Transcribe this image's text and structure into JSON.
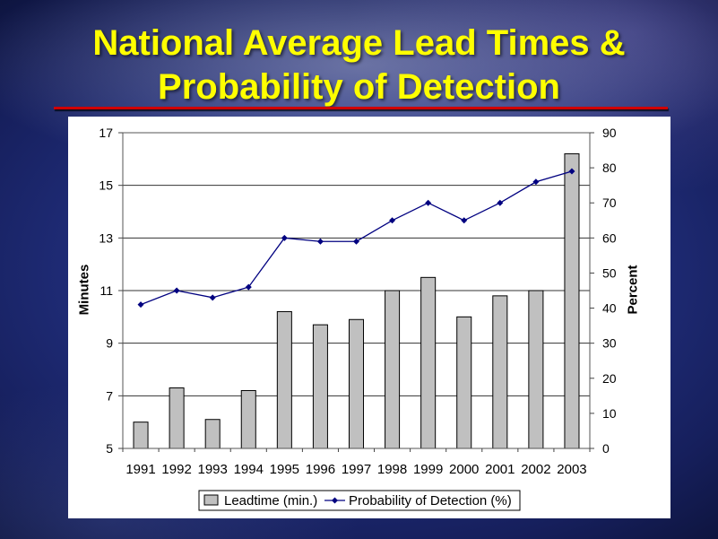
{
  "slide": {
    "background_color": "#1d2770",
    "title_color": "#ffff00",
    "rule_color": "#d00000",
    "panel_color": "#ffffff"
  },
  "chart_data": {
    "type": "bar",
    "title": "National Average Lead Times & Probability of Detection",
    "categories": [
      "1991",
      "1992",
      "1993",
      "1994",
      "1995",
      "1996",
      "1997",
      "1998",
      "1999",
      "2000",
      "2001",
      "2002",
      "2003"
    ],
    "series": [
      {
        "name": "Leadtime (min.)",
        "type": "bar",
        "axis": "left",
        "color": "#c0c0c0",
        "values": [
          6.0,
          7.3,
          6.1,
          7.2,
          10.2,
          9.7,
          9.9,
          11.0,
          11.5,
          10.0,
          10.8,
          11.0,
          16.2
        ]
      },
      {
        "name": "Probability of Detection (%)",
        "type": "line",
        "axis": "right",
        "color": "#000080",
        "marker": "diamond",
        "values": [
          41,
          45,
          43,
          46,
          60,
          59,
          59,
          65,
          70,
          65,
          70,
          76,
          79
        ]
      }
    ],
    "ylabel": "Minutes",
    "ylim": [
      5,
      17
    ],
    "yticks": [
      5,
      7,
      9,
      11,
      13,
      15,
      17
    ],
    "y2label": "Percent",
    "y2lim": [
      0,
      90
    ],
    "y2ticks": [
      0,
      10,
      20,
      30,
      40,
      50,
      60,
      70,
      80,
      90
    ],
    "grid": true,
    "legend": "bottom"
  }
}
